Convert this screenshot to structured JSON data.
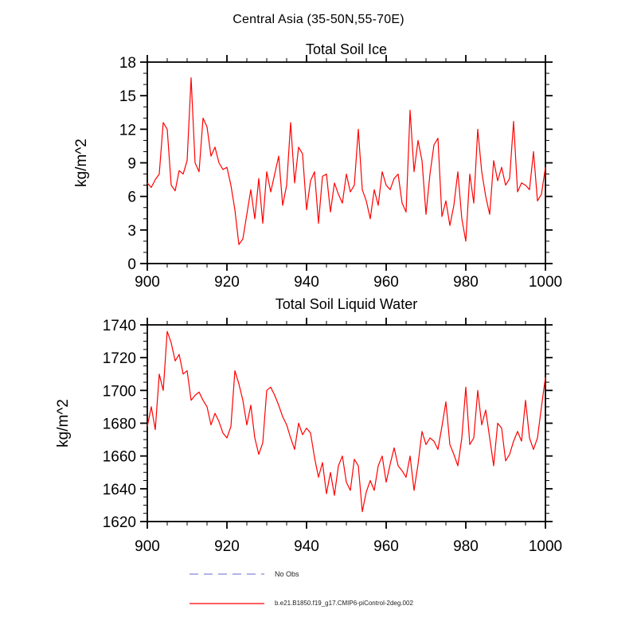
{
  "page_title": "Central Asia (35-50N,55-70E)",
  "legend": {
    "items": [
      {
        "label": "No Obs",
        "color": "#9a9ade",
        "style": "dashed"
      },
      {
        "label": "b.e21.B1850.f19_g17.CMIP6-piControl-2deg.002",
        "color": "#ff0000",
        "style": "solid"
      }
    ]
  },
  "chart_data": [
    {
      "type": "line",
      "title": "Total Soil Ice",
      "ylabel": "kg/m^2",
      "xlabel": "",
      "xlim": [
        900,
        1000
      ],
      "ylim": [
        0,
        18
      ],
      "xticks": [
        900,
        920,
        940,
        960,
        980,
        1000
      ],
      "yticks": [
        0,
        3,
        6,
        9,
        12,
        15,
        18
      ],
      "x_minor_step": 5,
      "y_minor_step": 1,
      "line_color": "#ff0000",
      "x_start": 900,
      "x_step": 1,
      "values": [
        7.2,
        6.8,
        7.5,
        8.0,
        12.6,
        12.0,
        7.0,
        6.5,
        8.3,
        8.0,
        9.2,
        16.6,
        9.0,
        8.2,
        13.0,
        12.2,
        9.6,
        10.4,
        9.0,
        8.4,
        8.6,
        7.0,
        4.8,
        1.7,
        2.2,
        4.4,
        6.6,
        4.0,
        7.6,
        3.6,
        8.2,
        6.4,
        8.0,
        9.6,
        5.2,
        7.0,
        12.6,
        7.2,
        10.4,
        9.8,
        4.8,
        7.4,
        8.2,
        3.6,
        7.8,
        8.0,
        4.6,
        7.2,
        6.2,
        5.4,
        8.0,
        6.4,
        7.0,
        12.0,
        6.6,
        5.6,
        4.0,
        6.6,
        5.2,
        8.2,
        7.0,
        6.6,
        7.6,
        8.0,
        5.4,
        4.6,
        13.7,
        8.2,
        11.0,
        9.2,
        4.4,
        8.0,
        10.6,
        11.2,
        4.2,
        5.6,
        3.4,
        5.2,
        8.2,
        4.0,
        2.0,
        8.0,
        5.4,
        12.0,
        8.2,
        6.0,
        4.4,
        9.2,
        7.4,
        8.6,
        7.0,
        7.6,
        12.7,
        6.4,
        7.2,
        7.0,
        6.6,
        10.0,
        5.6,
        6.2,
        8.6
      ]
    },
    {
      "type": "line",
      "title": "Total Soil Liquid Water",
      "ylabel": "kg/m^2",
      "xlabel": "",
      "xlim": [
        900,
        1000
      ],
      "ylim": [
        1620,
        1740
      ],
      "xticks": [
        900,
        920,
        940,
        960,
        980,
        1000
      ],
      "yticks": [
        1620,
        1640,
        1660,
        1680,
        1700,
        1720,
        1740
      ],
      "x_minor_step": 5,
      "y_minor_step": 5,
      "line_color": "#ff0000",
      "x_start": 900,
      "x_step": 1,
      "values": [
        1678,
        1690,
        1676,
        1710,
        1700,
        1736,
        1729,
        1718,
        1722,
        1710,
        1712,
        1694,
        1697,
        1699,
        1694,
        1690,
        1679,
        1686,
        1681,
        1674,
        1671,
        1678,
        1712,
        1704,
        1694,
        1679,
        1691,
        1671,
        1661,
        1668,
        1700,
        1702,
        1697,
        1691,
        1684,
        1679,
        1671,
        1664,
        1680,
        1673,
        1677,
        1674,
        1659,
        1647,
        1656,
        1637,
        1650,
        1636,
        1654,
        1660,
        1644,
        1639,
        1658,
        1654,
        1626,
        1638,
        1645,
        1639,
        1654,
        1660,
        1644,
        1655,
        1665,
        1654,
        1651,
        1647,
        1660,
        1639,
        1655,
        1675,
        1667,
        1671,
        1669,
        1664,
        1678,
        1693,
        1667,
        1661,
        1654,
        1671,
        1702,
        1667,
        1671,
        1700,
        1679,
        1688,
        1671,
        1654,
        1680,
        1677,
        1657,
        1661,
        1669,
        1675,
        1669,
        1694,
        1671,
        1664,
        1671,
        1690,
        1708
      ]
    }
  ]
}
